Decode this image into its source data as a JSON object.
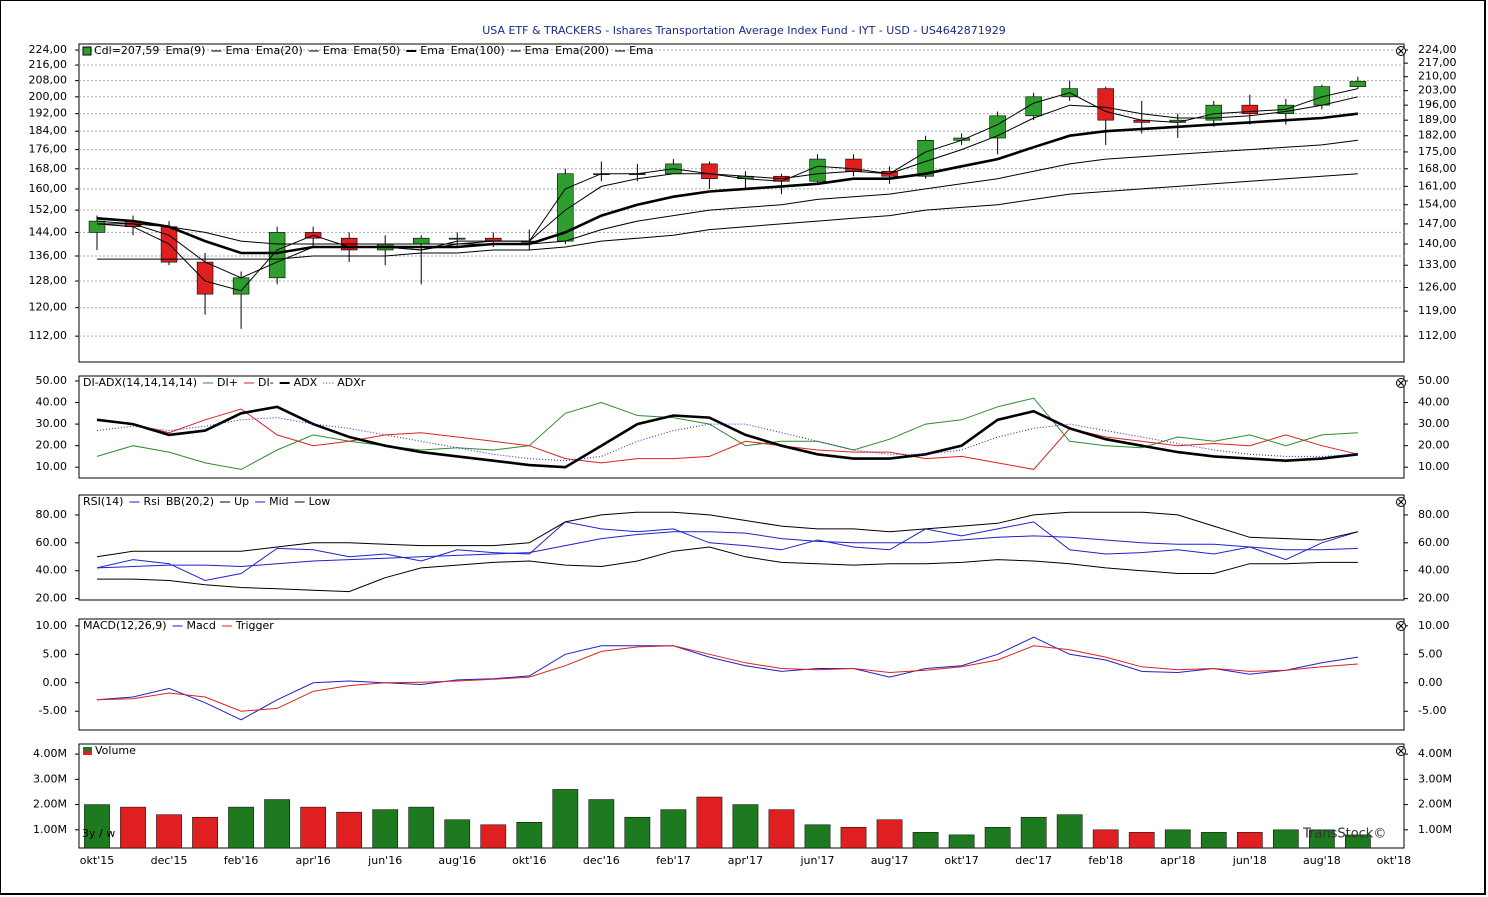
{
  "title": "USA ETF & TRACKERS - Ishares Transportation Average Index Fund - IYT - USD - US4642871929",
  "period_label": "3y / w",
  "watermark": "TransStock©",
  "chart_data": [
    {
      "type": "candlestick",
      "label": "Cdl=207,59",
      "log": true,
      "grid": true,
      "up_color": "#2e9e2e",
      "down_color": "#e02020",
      "ylim": [
        105.2,
        227.3
      ],
      "y2lim": [
        105.2,
        227.3
      ],
      "yticks": [
        {
          "value": 112,
          "label": "112,00"
        },
        {
          "value": 120,
          "label": "120,00"
        },
        {
          "value": 128,
          "label": "128,00"
        },
        {
          "value": 136,
          "label": "136,00"
        },
        {
          "value": 144,
          "label": "144,00"
        },
        {
          "value": 152,
          "label": "152,00"
        },
        {
          "value": 160,
          "label": "160,00"
        },
        {
          "value": 168,
          "label": "168,00"
        },
        {
          "value": 176,
          "label": "176,00"
        },
        {
          "value": 184,
          "label": "184,00"
        },
        {
          "value": 192,
          "label": "192,00"
        },
        {
          "value": 200,
          "label": "200,00"
        },
        {
          "value": 208,
          "label": "208,00"
        },
        {
          "value": 216,
          "label": "216,00"
        },
        {
          "value": 224,
          "label": "224,00"
        }
      ],
      "y2ticks": [
        {
          "value": 112,
          "label": "112,00"
        },
        {
          "value": 119,
          "label": "119,00"
        },
        {
          "value": 126,
          "label": "126,00"
        },
        {
          "value": 133,
          "label": "133,00"
        },
        {
          "value": 140,
          "label": "140,00"
        },
        {
          "value": 147,
          "label": "147,00"
        },
        {
          "value": 154,
          "label": "154,00"
        },
        {
          "value": 161,
          "label": "161,00"
        },
        {
          "value": 168,
          "label": "168,00"
        },
        {
          "value": 175,
          "label": "175,00"
        },
        {
          "value": 182,
          "label": "182,00"
        },
        {
          "value": 189,
          "label": "189,00"
        },
        {
          "value": 196,
          "label": "196,00"
        },
        {
          "value": 203,
          "label": "203,00"
        },
        {
          "value": 210,
          "label": "210,00"
        },
        {
          "value": 217,
          "label": "217,00"
        },
        {
          "value": 224,
          "label": "224,00"
        }
      ],
      "open": [
        144,
        148,
        146,
        134,
        124,
        129,
        144,
        142,
        138,
        140,
        142,
        142,
        141,
        141,
        166,
        166,
        166,
        170,
        164,
        165,
        163,
        172,
        167,
        165,
        180,
        181,
        191,
        200,
        204,
        189,
        188,
        189,
        196,
        192,
        196,
        205,
        null
      ],
      "high": [
        150,
        150,
        148,
        137,
        131,
        146,
        146,
        144,
        143,
        143,
        144,
        144,
        145,
        168,
        171,
        170,
        172,
        171,
        167,
        166,
        174,
        174,
        169,
        182,
        183,
        193,
        202,
        208,
        205,
        198,
        192,
        198,
        201,
        199,
        206,
        210,
        null
      ],
      "low": [
        138,
        143,
        133,
        118,
        114,
        127,
        139,
        134,
        133,
        127,
        139,
        139,
        138,
        140,
        163,
        163,
        166,
        160,
        160,
        158,
        162,
        165,
        162,
        164,
        178,
        174,
        189,
        198,
        178,
        183,
        181,
        186,
        187,
        187,
        194,
        204,
        null
      ],
      "close": [
        148,
        146,
        134,
        124,
        129,
        144,
        142,
        138,
        140,
        142,
        142,
        141,
        141,
        166,
        166,
        166,
        170,
        164,
        165,
        163,
        172,
        167,
        165,
        180,
        181,
        191,
        200,
        204,
        189,
        188,
        189,
        196,
        192,
        196,
        205,
        207.59,
        null
      ],
      "series": [
        {
          "indicator": "Ema(9)",
          "name": "Ema",
          "color": "#000000",
          "width": 1,
          "values": [
            147,
            146,
            140,
            128,
            125,
            138,
            143,
            139,
            139,
            138,
            141,
            141,
            141,
            160,
            166,
            166,
            168,
            166,
            164,
            163,
            169,
            168,
            166,
            175,
            180,
            187,
            197,
            202,
            193,
            189,
            188,
            192,
            193,
            194,
            200,
            204,
            null
          ]
        },
        {
          "indicator": "Ema(20)",
          "name": "Ema",
          "color": "#000000",
          "width": 1,
          "values": [
            147,
            147,
            143,
            134,
            129,
            134,
            139,
            139,
            139,
            138,
            140,
            141,
            141,
            152,
            161,
            164,
            166,
            166,
            165,
            164,
            166,
            167,
            166,
            171,
            176,
            182,
            190,
            196,
            195,
            192,
            190,
            190,
            191,
            193,
            196,
            200,
            null
          ]
        },
        {
          "indicator": "Ema(50)",
          "name": "Ema",
          "color": "#000000",
          "width": 2.6,
          "values": [
            149,
            148,
            146,
            141,
            137,
            137,
            139,
            139,
            139,
            139,
            139,
            140,
            140,
            144,
            150,
            154,
            157,
            159,
            160,
            161,
            162,
            164,
            164,
            166,
            169,
            172,
            177,
            182,
            184,
            185,
            186,
            187,
            188,
            189,
            190,
            192,
            null
          ]
        },
        {
          "indicator": "Ema(100)",
          "name": "Ema",
          "color": "#000000",
          "width": 1,
          "values": [
            148,
            147,
            146,
            144,
            141,
            140,
            140,
            140,
            140,
            140,
            140,
            140,
            140,
            141,
            145,
            148,
            150,
            152,
            153,
            154,
            156,
            157,
            158,
            160,
            162,
            164,
            167,
            170,
            172,
            173,
            174,
            175,
            176,
            177,
            178,
            180,
            null
          ]
        },
        {
          "indicator": "Ema(200)",
          "name": "Ema",
          "color": "#000000",
          "width": 1,
          "values": [
            135,
            135,
            135,
            135,
            135,
            135,
            136,
            136,
            136,
            137,
            137,
            138,
            138,
            139,
            141,
            142,
            143,
            145,
            146,
            147,
            148,
            149,
            150,
            152,
            153,
            154,
            156,
            158,
            159,
            160,
            161,
            162,
            163,
            164,
            165,
            166,
            null
          ]
        }
      ]
    },
    {
      "type": "line",
      "label": "DI-ADX(14,14,14,14)",
      "ylim": [
        5,
        52.3
      ],
      "yticks": [
        {
          "value": 10,
          "label": "10.00"
        },
        {
          "value": 20,
          "label": "20.00"
        },
        {
          "value": 30,
          "label": "30.00"
        },
        {
          "value": 40,
          "label": "40.00"
        },
        {
          "value": 50,
          "label": "50.00"
        }
      ],
      "series": [
        {
          "name": "DI+",
          "color": "#2e8b2e",
          "width": 1,
          "values": [
            15,
            20,
            17,
            12,
            9,
            18,
            25,
            22,
            20,
            18,
            19,
            18,
            20,
            35,
            40,
            34,
            33,
            30,
            20,
            22,
            22,
            18,
            23,
            30,
            32,
            38,
            42,
            22,
            20,
            19,
            24,
            22,
            25,
            20,
            25,
            26,
            null
          ]
        },
        {
          "name": "DI-",
          "color": "#e02020",
          "width": 1,
          "values": [
            32,
            30,
            26,
            32,
            37,
            25,
            20,
            22,
            25,
            26,
            24,
            22,
            20,
            14,
            12,
            14,
            14,
            15,
            22,
            20,
            18,
            17,
            17,
            14,
            15,
            12,
            9,
            28,
            24,
            22,
            20,
            21,
            20,
            25,
            20,
            16,
            null
          ]
        },
        {
          "name": "ADX",
          "color": "#000000",
          "width": 2.6,
          "values": [
            32,
            30,
            25,
            27,
            35,
            38,
            30,
            24,
            20,
            17,
            15,
            13,
            11,
            10,
            20,
            30,
            34,
            33,
            25,
            20,
            16,
            14,
            14,
            16,
            20,
            32,
            36,
            28,
            23,
            20,
            17,
            15,
            14,
            13,
            14,
            16,
            null
          ]
        },
        {
          "name": "ADXr",
          "color": "#2020e0",
          "width": 1,
          "dash": "1 2",
          "values": [
            27,
            29,
            27,
            29,
            32,
            33,
            30,
            28,
            25,
            22,
            19,
            16,
            14,
            13,
            15,
            22,
            27,
            30,
            30,
            26,
            22,
            18,
            16,
            16,
            18,
            24,
            28,
            30,
            27,
            24,
            21,
            18,
            16,
            15,
            15,
            16,
            null
          ]
        }
      ]
    },
    {
      "type": "line",
      "label": "RSI(14)",
      "ylim": [
        19,
        94.3
      ],
      "yticks": [
        {
          "value": 20,
          "label": "20.00"
        },
        {
          "value": 40,
          "label": "40.00"
        },
        {
          "value": 60,
          "label": "60.00"
        },
        {
          "value": 80,
          "label": "80.00"
        }
      ],
      "series": [
        {
          "name": "Rsi",
          "color": "#2020d0",
          "width": 1,
          "values": [
            42,
            48,
            45,
            33,
            38,
            56,
            55,
            50,
            52,
            47,
            55,
            53,
            52,
            75,
            70,
            68,
            70,
            60,
            58,
            55,
            62,
            57,
            55,
            70,
            65,
            70,
            75,
            55,
            52,
            53,
            55,
            52,
            57,
            48,
            60,
            68,
            null
          ]
        },
        {
          "indicator": "BB(20,2)",
          "name": "Up",
          "color": "#000000",
          "width": 1,
          "values": [
            50,
            54,
            54,
            54,
            54,
            57,
            60,
            60,
            59,
            58,
            58,
            58,
            60,
            75,
            80,
            82,
            82,
            80,
            76,
            72,
            70,
            70,
            68,
            70,
            72,
            74,
            80,
            82,
            82,
            82,
            80,
            72,
            64,
            63,
            62,
            68,
            null
          ]
        },
        {
          "name": "Mid",
          "color": "#2020d0",
          "width": 1,
          "values": [
            42,
            43,
            44,
            44,
            43,
            45,
            47,
            48,
            49,
            50,
            51,
            52,
            53,
            58,
            63,
            66,
            68,
            68,
            67,
            63,
            61,
            60,
            60,
            60,
            62,
            64,
            65,
            64,
            62,
            60,
            59,
            59,
            57,
            55,
            55,
            56,
            null
          ]
        },
        {
          "name": "Low",
          "color": "#000000",
          "width": 1,
          "values": [
            34,
            34,
            33,
            30,
            28,
            27,
            26,
            25,
            35,
            42,
            44,
            46,
            47,
            44,
            43,
            47,
            54,
            57,
            50,
            46,
            45,
            44,
            45,
            45,
            46,
            48,
            47,
            45,
            42,
            40,
            38,
            38,
            45,
            45,
            46,
            46,
            null
          ]
        }
      ]
    },
    {
      "type": "line",
      "label": "MACD(12,26,9)",
      "ylim": [
        -8.3,
        11.2
      ],
      "yticks": [
        {
          "value": -5,
          "label": "-5.00"
        },
        {
          "value": 0,
          "label": "0.00"
        },
        {
          "value": 5,
          "label": "5.00"
        },
        {
          "value": 10,
          "label": "10.00"
        }
      ],
      "series": [
        {
          "name": "Macd",
          "color": "#2020d0",
          "width": 1,
          "values": [
            -3,
            -2.5,
            -1,
            -3.5,
            -6.5,
            -3,
            0,
            0.3,
            0,
            -0.3,
            0.5,
            0.7,
            1.2,
            5,
            6.5,
            6.5,
            6.5,
            4.5,
            3,
            2,
            2.5,
            2.5,
            1,
            2.5,
            3,
            5,
            8,
            5,
            4,
            2,
            1.8,
            2.5,
            1.5,
            2.2,
            3.5,
            4.5,
            null
          ]
        },
        {
          "name": "Trigger",
          "color": "#e02020",
          "width": 1,
          "values": [
            -3,
            -2.8,
            -1.8,
            -2.5,
            -5,
            -4.5,
            -1.5,
            -0.5,
            0,
            0.1,
            0.3,
            0.6,
            1,
            3,
            5.5,
            6.3,
            6.5,
            5,
            3.5,
            2.5,
            2.3,
            2.5,
            1.8,
            2.2,
            2.8,
            4,
            6.5,
            5.8,
            4.5,
            2.8,
            2.3,
            2.5,
            2,
            2.2,
            2.8,
            3.3,
            null
          ]
        }
      ]
    },
    {
      "type": "bar",
      "label": "Volume",
      "up_color": "#1e7a1e",
      "down_color": "#e02020",
      "ylim": [
        280000,
        4400000
      ],
      "yticks": [
        {
          "value": 1000000,
          "label": "1.00M"
        },
        {
          "value": 2000000,
          "label": "2.00M"
        },
        {
          "value": 3000000,
          "label": "3.00M"
        },
        {
          "value": 4000000,
          "label": "4.00M"
        }
      ],
      "categories": [
        "okt'15",
        null,
        "dec'15",
        null,
        "feb'16",
        null,
        "apr'16",
        null,
        "jun'16",
        null,
        "aug'16",
        null,
        "okt'16",
        null,
        "dec'16",
        null,
        "feb'17",
        null,
        "apr'17",
        null,
        "jun'17",
        null,
        "aug'17",
        null,
        "okt'17",
        null,
        "dec'17",
        null,
        "feb'18",
        null,
        "apr'18",
        null,
        "jun'18",
        null,
        "aug'18",
        null,
        "okt'18"
      ],
      "values": [
        2000000,
        1900000,
        1600000,
        1500000,
        1900000,
        2200000,
        1900000,
        1700000,
        1800000,
        1900000,
        1400000,
        1200000,
        1300000,
        2600000,
        2200000,
        1500000,
        1800000,
        2300000,
        2000000,
        1800000,
        1200000,
        1100000,
        1400000,
        900000,
        800000,
        1100000,
        1500000,
        1600000,
        1000000,
        900000,
        1000000,
        900000,
        900000,
        1000000,
        1000000,
        800000,
        null
      ]
    }
  ]
}
